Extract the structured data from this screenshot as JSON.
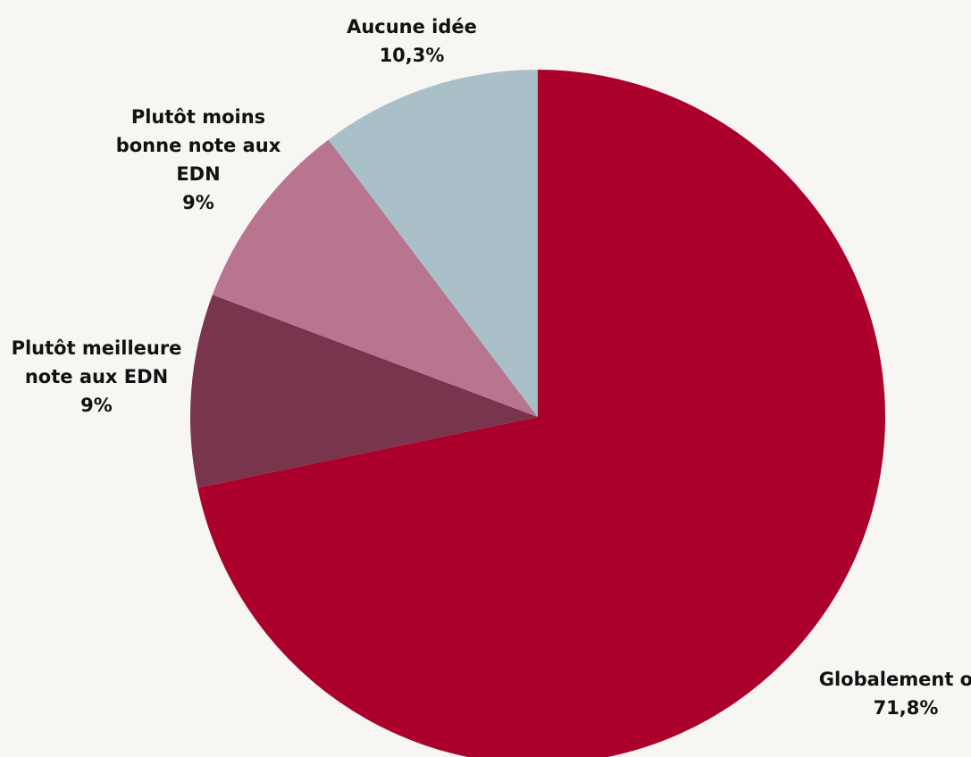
{
  "chart_data": {
    "type": "pie",
    "title": "",
    "start_angle_deg": 0,
    "direction": "clockwise",
    "slices": [
      {
        "label_lines": [
          "Globalement oui"
        ],
        "value": 71.8,
        "value_label": "71,8%",
        "color": "#ab002c"
      },
      {
        "label_lines": [
          "Plutôt meilleure",
          "note aux EDN"
        ],
        "value": 9,
        "value_label": "9%",
        "color": "#79354e"
      },
      {
        "label_lines": [
          "Plutôt moins",
          "bonne note aux",
          "EDN"
        ],
        "value": 9,
        "value_label": "9%",
        "color": "#b87590"
      },
      {
        "label_lines": [
          "Aucune idée"
        ],
        "value": 10.3,
        "value_label": "10,3%",
        "color": "#a9c0c9"
      }
    ]
  }
}
